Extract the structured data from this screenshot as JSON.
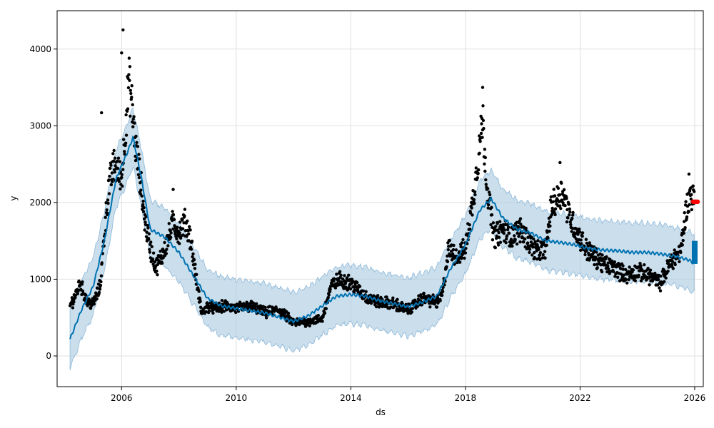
{
  "chart_data": {
    "type": "scatter",
    "title": "",
    "xlabel": "ds",
    "ylabel": "y",
    "xlim": [
      2003.75,
      2026.3
    ],
    "ylim": [
      -400,
      4500
    ],
    "x_ticks": [
      2006,
      2010,
      2014,
      2018,
      2022,
      2026
    ],
    "y_ticks": [
      0,
      1000,
      2000,
      3000,
      4000
    ],
    "grid": true,
    "colors": {
      "observed": "#000000",
      "forecast_line": "#0072B2",
      "interval": "#a6c8e0",
      "highlight": "#ff0000"
    },
    "observed_anchors": [
      [
        2004.2,
        650
      ],
      [
        2004.4,
        800
      ],
      [
        2004.55,
        950
      ],
      [
        2004.8,
        700
      ],
      [
        2005.0,
        680
      ],
      [
        2005.25,
        900
      ],
      [
        2005.4,
        1600
      ],
      [
        2005.55,
        2200
      ],
      [
        2005.75,
        2500
      ],
      [
        2006.0,
        2300
      ],
      [
        2006.1,
        2800
      ],
      [
        2006.25,
        3600
      ],
      [
        2006.35,
        3300
      ],
      [
        2006.5,
        2700
      ],
      [
        2006.65,
        2300
      ],
      [
        2006.8,
        1800
      ],
      [
        2007.0,
        1400
      ],
      [
        2007.2,
        1150
      ],
      [
        2007.4,
        1300
      ],
      [
        2007.6,
        1500
      ],
      [
        2007.8,
        1750
      ],
      [
        2008.0,
        1600
      ],
      [
        2008.2,
        1750
      ],
      [
        2008.4,
        1550
      ],
      [
        2008.6,
        1000
      ],
      [
        2008.8,
        550
      ],
      [
        2009.0,
        650
      ],
      [
        2009.3,
        620
      ],
      [
        2009.6,
        650
      ],
      [
        2010.0,
        620
      ],
      [
        2010.5,
        650
      ],
      [
        2011.0,
        560
      ],
      [
        2011.5,
        600
      ],
      [
        2012.0,
        430
      ],
      [
        2012.5,
        450
      ],
      [
        2013.0,
        480
      ],
      [
        2013.3,
        900
      ],
      [
        2013.6,
        1000
      ],
      [
        2014.0,
        950
      ],
      [
        2014.3,
        850
      ],
      [
        2014.6,
        750
      ],
      [
        2015.0,
        700
      ],
      [
        2015.5,
        680
      ],
      [
        2016.0,
        600
      ],
      [
        2016.5,
        750
      ],
      [
        2017.0,
        700
      ],
      [
        2017.2,
        800
      ],
      [
        2017.4,
        1400
      ],
      [
        2017.7,
        1300
      ],
      [
        2018.0,
        1400
      ],
      [
        2018.25,
        2000
      ],
      [
        2018.45,
        2600
      ],
      [
        2018.6,
        3100
      ],
      [
        2018.75,
        2200
      ],
      [
        2019.0,
        1550
      ],
      [
        2019.3,
        1650
      ],
      [
        2019.6,
        1550
      ],
      [
        2019.9,
        1650
      ],
      [
        2020.2,
        1500
      ],
      [
        2020.5,
        1350
      ],
      [
        2020.8,
        1400
      ],
      [
        2021.0,
        1950
      ],
      [
        2021.2,
        2050
      ],
      [
        2021.4,
        2150
      ],
      [
        2021.6,
        1850
      ],
      [
        2021.9,
        1600
      ],
      [
        2022.2,
        1400
      ],
      [
        2022.5,
        1300
      ],
      [
        2022.8,
        1200
      ],
      [
        2023.2,
        1150
      ],
      [
        2023.6,
        1050
      ],
      [
        2024.0,
        1100
      ],
      [
        2024.4,
        1050
      ],
      [
        2024.8,
        950
      ],
      [
        2025.2,
        1250
      ],
      [
        2025.5,
        1350
      ],
      [
        2025.7,
        1900
      ],
      [
        2025.85,
        2100
      ],
      [
        2026.0,
        2050
      ]
    ],
    "trend_line": [
      [
        2004.2,
        220
      ],
      [
        2004.6,
        600
      ],
      [
        2005.0,
        900
      ],
      [
        2005.4,
        1500
      ],
      [
        2005.8,
        2300
      ],
      [
        2006.2,
        2650
      ],
      [
        2006.4,
        2850
      ],
      [
        2006.7,
        2300
      ],
      [
        2007.0,
        1650
      ],
      [
        2007.5,
        1550
      ],
      [
        2008.0,
        1350
      ],
      [
        2008.5,
        1050
      ],
      [
        2009.0,
        750
      ],
      [
        2009.5,
        650
      ],
      [
        2010.0,
        620
      ],
      [
        2011.0,
        560
      ],
      [
        2012.0,
        450
      ],
      [
        2012.5,
        520
      ],
      [
        2013.0,
        650
      ],
      [
        2013.5,
        780
      ],
      [
        2014.0,
        800
      ],
      [
        2014.5,
        780
      ],
      [
        2015.0,
        720
      ],
      [
        2015.5,
        680
      ],
      [
        2016.0,
        640
      ],
      [
        2016.5,
        700
      ],
      [
        2017.0,
        780
      ],
      [
        2017.5,
        1150
      ],
      [
        2018.0,
        1450
      ],
      [
        2018.5,
        1900
      ],
      [
        2018.9,
        2050
      ],
      [
        2019.3,
        1800
      ],
      [
        2019.8,
        1650
      ],
      [
        2020.3,
        1600
      ],
      [
        2020.8,
        1500
      ],
      [
        2021.3,
        1480
      ],
      [
        2021.8,
        1450
      ],
      [
        2022.3,
        1400
      ],
      [
        2022.8,
        1380
      ],
      [
        2023.3,
        1370
      ],
      [
        2023.8,
        1350
      ],
      [
        2024.3,
        1350
      ],
      [
        2024.8,
        1330
      ],
      [
        2025.3,
        1300
      ],
      [
        2025.8,
        1250
      ],
      [
        2026.0,
        1200
      ]
    ],
    "interval_halfwidth": 380,
    "forecast_bar": {
      "x": 2026.0,
      "y_range": [
        1200,
        1500
      ]
    },
    "highlight_points": [
      [
        2025.95,
        2010
      ],
      [
        2026.0,
        2010
      ],
      [
        2026.05,
        2010
      ],
      [
        2026.1,
        2010
      ]
    ]
  }
}
